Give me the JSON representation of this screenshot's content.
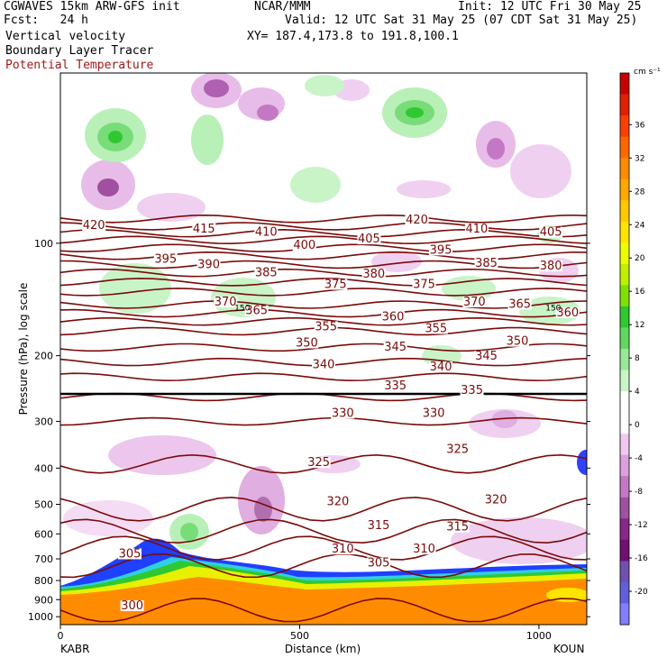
{
  "header": {
    "line1_left": "CGWAVES 15km ARW-GFS init",
    "line1_mid": "NCAR/MMM",
    "line1_right": "Init: 12 UTC Fri 30 May 25",
    "line2_left": "Fcst:   24 h",
    "line2_right": "Valid: 12 UTC Sat 31 May 25 (07 CDT Sat 31 May 25)",
    "field1": "Vertical velocity",
    "field2": "Boundary Layer Tracer",
    "field3": "Potential Temperature",
    "xy": "XY= 187.4,173.8 to 191.8,100.1"
  },
  "colors": {
    "theta": "#7a0a0a",
    "field3_text": "#a01818"
  },
  "chart_data": {
    "type": "heatmap",
    "title": "Vertical velocity",
    "xlabel": "Distance (km)",
    "ylabel": "Pressure (hPa), log scale",
    "x_ticks": [
      0,
      500,
      1000
    ],
    "y_ticks": [
      100,
      200,
      300,
      400,
      500,
      600,
      700,
      800,
      900,
      1000
    ],
    "xlim": [
      0,
      1100
    ],
    "ylim": [
      1050,
      35
    ],
    "endpoints": {
      "left": "KABR",
      "right": "KOUN"
    },
    "colorbar": {
      "units": "cm s⁻¹",
      "labels": [
        36,
        32,
        28,
        24,
        20,
        16,
        12,
        8,
        4,
        0,
        -4,
        -8,
        -12,
        -16,
        -20
      ],
      "colors": [
        "#c80000",
        "#e02000",
        "#f84000",
        "#ff6800",
        "#ff8c00",
        "#ffa800",
        "#ffc800",
        "#ffe400",
        "#f0ff00",
        "#c0f000",
        "#80e000",
        "#30c830",
        "#60d860",
        "#98e898",
        "#c8f4c8",
        "#ffffff",
        "#ffffff",
        "#f0c8f0",
        "#dca0dc",
        "#c478c4",
        "#a050a0",
        "#882888",
        "#701070",
        "#7050b0",
        "#6060d8",
        "#8080ff"
      ]
    },
    "theta_contours": [
      {
        "value": 300,
        "p": 960
      },
      {
        "value": 305,
        "p": 730
      },
      {
        "value": 310,
        "p": 655
      },
      {
        "value": 315,
        "p": 590
      },
      {
        "value": 320,
        "p": 515
      },
      {
        "value": 325,
        "p": 390
      },
      {
        "value": 330,
        "p": 300
      },
      {
        "value": 335,
        "p": 258
      },
      {
        "value": 340,
        "p": 228
      },
      {
        "value": 345,
        "p": 208
      },
      {
        "value": 350,
        "p": 190
      },
      {
        "value": 355,
        "p": 172
      },
      {
        "value": 360,
        "p": 162
      },
      {
        "value": 365,
        "p": 154
      },
      {
        "value": 370,
        "p": 146
      },
      {
        "value": 375,
        "p": 135
      },
      {
        "value": 380,
        "p": 127
      },
      {
        "value": 385,
        "p": 120
      },
      {
        "value": 390,
        "p": 114
      },
      {
        "value": 395,
        "p": 108
      },
      {
        "value": 400,
        "p": 103
      },
      {
        "value": 405,
        "p": 98
      },
      {
        "value": 410,
        "p": 94
      },
      {
        "value": 415,
        "p": 90
      },
      {
        "value": 420,
        "p": 86
      }
    ],
    "theta_labels": [
      {
        "text": "420",
        "x": 70,
        "p": 91
      },
      {
        "text": "415",
        "x": 300,
        "p": 93
      },
      {
        "text": "410",
        "x": 430,
        "p": 95
      },
      {
        "text": "400",
        "x": 510,
        "p": 103
      },
      {
        "text": "405",
        "x": 645,
        "p": 99
      },
      {
        "text": "420",
        "x": 745,
        "p": 88
      },
      {
        "text": "410",
        "x": 870,
        "p": 93
      },
      {
        "text": "405",
        "x": 1025,
        "p": 95
      },
      {
        "text": "395",
        "x": 220,
        "p": 112
      },
      {
        "text": "390",
        "x": 310,
        "p": 116
      },
      {
        "text": "385",
        "x": 430,
        "p": 122
      },
      {
        "text": "380",
        "x": 655,
        "p": 123
      },
      {
        "text": "395",
        "x": 795,
        "p": 106
      },
      {
        "text": "385",
        "x": 890,
        "p": 115
      },
      {
        "text": "380",
        "x": 1025,
        "p": 117
      },
      {
        "text": "375",
        "x": 575,
        "p": 131
      },
      {
        "text": "375",
        "x": 760,
        "p": 131
      },
      {
        "text": "370",
        "x": 345,
        "p": 146
      },
      {
        "text": "365",
        "x": 410,
        "p": 154
      },
      {
        "text": "370",
        "x": 865,
        "p": 146
      },
      {
        "text": "365",
        "x": 960,
        "p": 148
      },
      {
        "text": "360",
        "x": 695,
        "p": 160
      },
      {
        "text": "360",
        "x": 1060,
        "p": 156
      },
      {
        "text": "355",
        "x": 555,
        "p": 170
      },
      {
        "text": "355",
        "x": 785,
        "p": 172
      },
      {
        "text": "350",
        "x": 515,
        "p": 188
      },
      {
        "text": "350",
        "x": 955,
        "p": 186
      },
      {
        "text": "345",
        "x": 700,
        "p": 193
      },
      {
        "text": "345",
        "x": 890,
        "p": 204
      },
      {
        "text": "340",
        "x": 550,
        "p": 215
      },
      {
        "text": "340",
        "x": 795,
        "p": 218
      },
      {
        "text": "335",
        "x": 700,
        "p": 245
      },
      {
        "text": "335",
        "x": 860,
        "p": 252
      },
      {
        "text": "330",
        "x": 590,
        "p": 290
      },
      {
        "text": "330",
        "x": 780,
        "p": 290
      },
      {
        "text": "325",
        "x": 540,
        "p": 393
      },
      {
        "text": "325",
        "x": 830,
        "p": 362
      },
      {
        "text": "320",
        "x": 580,
        "p": 500
      },
      {
        "text": "320",
        "x": 910,
        "p": 495
      },
      {
        "text": "315",
        "x": 665,
        "p": 580
      },
      {
        "text": "315",
        "x": 830,
        "p": 585
      },
      {
        "text": "310",
        "x": 590,
        "p": 670
      },
      {
        "text": "310",
        "x": 760,
        "p": 670
      },
      {
        "text": "305",
        "x": 145,
        "p": 690
      },
      {
        "text": "305",
        "x": 665,
        "p": 730
      },
      {
        "text": "300",
        "x": 150,
        "p": 950
      }
    ],
    "small_labels": [
      {
        "text": "150",
        "x": 380,
        "p": 149
      },
      {
        "text": "150",
        "x": 1030,
        "p": 149
      }
    ]
  }
}
